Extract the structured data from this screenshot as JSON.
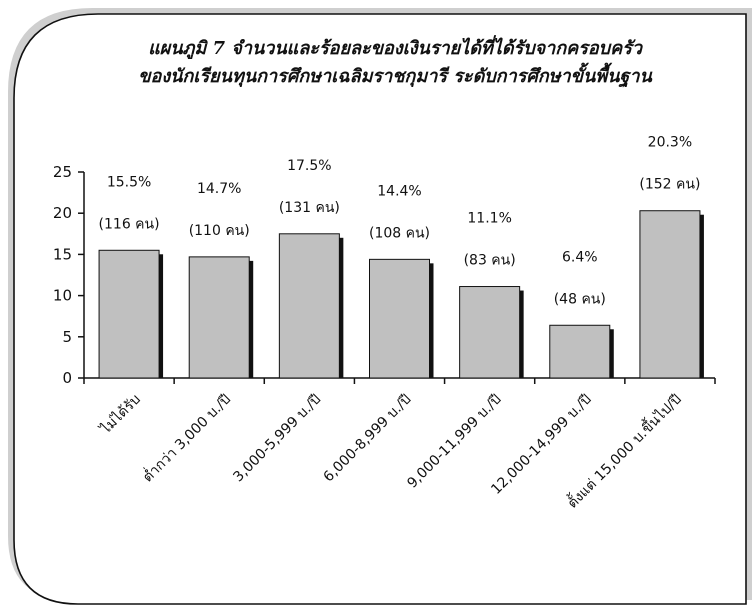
{
  "chart_data": {
    "type": "bar",
    "title_line1": "แผนภูมิ 7 จำนวนและร้อยละของเงินรายได้ที่ได้รับจากครอบครัว",
    "title_line2": "ของนักเรียนทุนการศึกษาเฉลิมราชกุมารี ระดับการศึกษาขั้นพื้นฐาน",
    "categories": [
      "ไม่ได้รับ",
      "ต่ำกว่า 3,000 บ./ปี",
      "3,000-5,999 บ./ปี",
      "6,000-8,999 บ./ปี",
      "9,000-11,999 บ./ปี",
      "12,000-14,999 บ./ปี",
      "ตั้งแต่ 15,000 บ.ขึ้นไป/ปี"
    ],
    "values": [
      15.5,
      14.7,
      17.5,
      14.4,
      11.1,
      6.4,
      20.3
    ],
    "percent_labels": [
      "15.5%",
      "14.7%",
      "17.5%",
      "14.4%",
      "11.1%",
      "6.4%",
      "20.3%"
    ],
    "count_labels": [
      "(116 คน)",
      "(110 คน)",
      "(131 คน)",
      "(108 คน)",
      "(83 คน)",
      "(48 คน)",
      "(152 คน)"
    ],
    "y_ticks": [
      "0",
      "5",
      "10",
      "15",
      "20",
      "25"
    ],
    "ylim": [
      0,
      25
    ],
    "grid": false,
    "legend": "none",
    "colors": {
      "bar_fill": "#c0c0c0",
      "bar_stroke": "#111111",
      "bar_shadow": "#111111",
      "frame_stroke": "#111111",
      "frame_shadow": "#c9c9c9"
    }
  }
}
